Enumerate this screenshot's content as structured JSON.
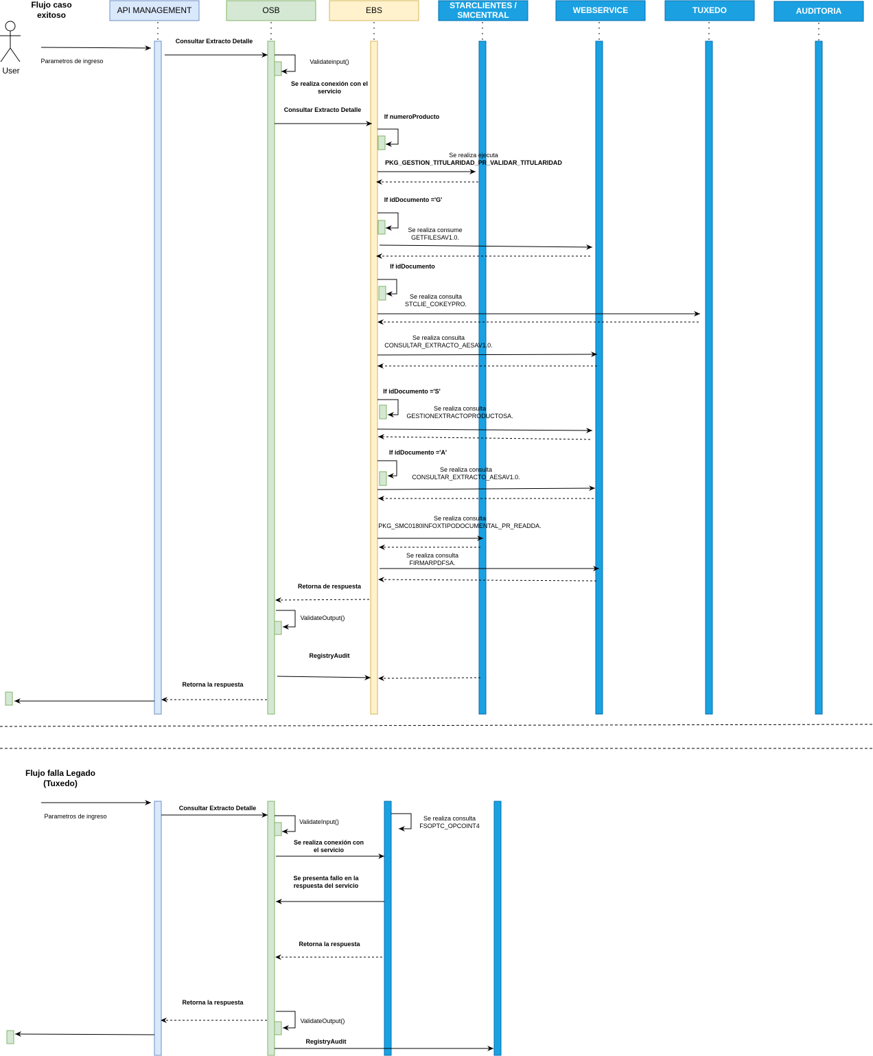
{
  "participants": [
    {
      "id": "api",
      "label": "API MANAGEMENT",
      "fill": "#dae8fc",
      "stroke": "#6c8ebf"
    },
    {
      "id": "osb",
      "label": "OSB",
      "fill": "#d5e8d4",
      "stroke": "#82b366"
    },
    {
      "id": "ebs",
      "label": "EBS",
      "fill": "#fff2cc",
      "stroke": "#d6b656"
    },
    {
      "id": "star",
      "label": [
        "STARCLIENTES /",
        "SMCENTRAL"
      ],
      "fill": "#1ba1e2",
      "stroke": "#006eaf"
    },
    {
      "id": "web",
      "label": "WEBSERVICE",
      "fill": "#1ba1e2",
      "stroke": "#006eaf"
    },
    {
      "id": "tux",
      "label": "TUXEDO",
      "fill": "#1ba1e2",
      "stroke": "#006eaf"
    },
    {
      "id": "aud",
      "label": "AUDITORIA",
      "fill": "#1ba1e2",
      "stroke": "#006eaf"
    }
  ],
  "actor": {
    "label": "User"
  },
  "section1": {
    "title": [
      "Flujo caso",
      "exitoso"
    ],
    "labels": [
      "Parametros de ingreso",
      "Consultar Extracto Detalle",
      "Validateinput()",
      "Se realiza conexión con el",
      "servicio",
      "Consultar Extracto Detalle",
      "If numeroProducto",
      "Se realiza ejecuta",
      "PKG_GESTION_TITULARIDAD_PR_VALIDAR_TITULARIDAD",
      "If idDocumento ='G'",
      "Se realiza consume",
      "GETFILESAV1.0.",
      "If idDocumento",
      "Se realiza consulta",
      "STCLIE_COKEYPRO.",
      "Se realiza consulta",
      "CONSULTAR_EXTRACTO_AESAV1.0.",
      "If idDocumento ='S'",
      "Se realiza consulta",
      "GESTIONEXTRACTOPRODUCTOSA.",
      "If idDocumento ='A'",
      "Se realiza consulta",
      "CONSULTAR_EXTRACTO_AESAV1.0.",
      "Se realiza consulta",
      "PKG_SMC0180INFOXTIPODOCUMENTAL_PR_READDA.",
      "Se realiza consulta",
      "FIRMARPDFSA.",
      "Retorna de respuesta",
      "ValidateOutput()",
      "RegistryAudit",
      "Retorna la respuesta"
    ]
  },
  "section2": {
    "title": [
      "Flujo falla Legado",
      "(Tuxedo)"
    ],
    "labels": [
      "Parametros de ingreso",
      "Consultar Extracto Detalle",
      "ValidateInput()",
      "Se realiza conexión con",
      "el servicio",
      "Se realiza consulta",
      "FSOPTC_OPCOINT4",
      "Se presenta fallo en la",
      "respuesta del servicio",
      "Retorna la respuesta",
      "Retorna la respuesta",
      "ValidateOutput()",
      "RegistryAudit"
    ]
  }
}
